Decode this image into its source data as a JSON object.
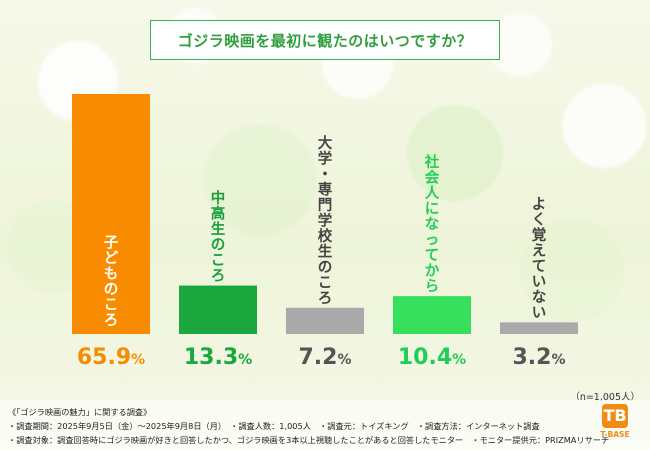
{
  "title": "ゴジラ映画を最初に観たのはいつですか？",
  "chart_data": {
    "type": "bar",
    "categories": [
      "子どものころ",
      "中高生のころ",
      "大学・専門学校生のころ",
      "社会人になってから",
      "よく覚えていない"
    ],
    "values": [
      65.9,
      13.3,
      7.2,
      10.4,
      3.2
    ],
    "value_labels": [
      {
        "num": "65.",
        "dec": "9",
        "unit": "%"
      },
      {
        "num": "13.",
        "dec": "3",
        "unit": "%"
      },
      {
        "num": "7.",
        "dec": "2",
        "unit": "%"
      },
      {
        "num": "10.",
        "dec": "4",
        "unit": "%"
      },
      {
        "num": "3.",
        "dec": "2",
        "unit": "%"
      }
    ],
    "colors": [
      "#f98b00",
      "#1aa83e",
      "#aaaaaa",
      "#36e05c",
      "#aaaaaa"
    ],
    "label_colors": [
      "#ffffff",
      "#1a9e3c",
      "#444444",
      "#1fcf55",
      "#444444"
    ],
    "value_colors": [
      "#f98b00",
      "#1aa83e",
      "#555555",
      "#1fcf55",
      "#555555"
    ],
    "ylim": [
      0,
      70
    ]
  },
  "sample_note": "（n=1,005人）",
  "footer": {
    "line1": "《「ゴジラ映画の魅力」に関する調査》",
    "line2": "・調査期間：2025年9月5日（金）～2025年9月8日（月）　・調査人数：1,005人　・調査元：トイズキング　・調査方法：インターネット調査",
    "line3": "・調査対象：調査回答時にゴジラ映画が好きと回答したかつ、ゴジラ映画を3本以上視聴したことがあると回答したモニター　・モニター提供元：PRIZMAリサーチ"
  },
  "logo": {
    "mark": "TB",
    "text": "T-BASE"
  }
}
